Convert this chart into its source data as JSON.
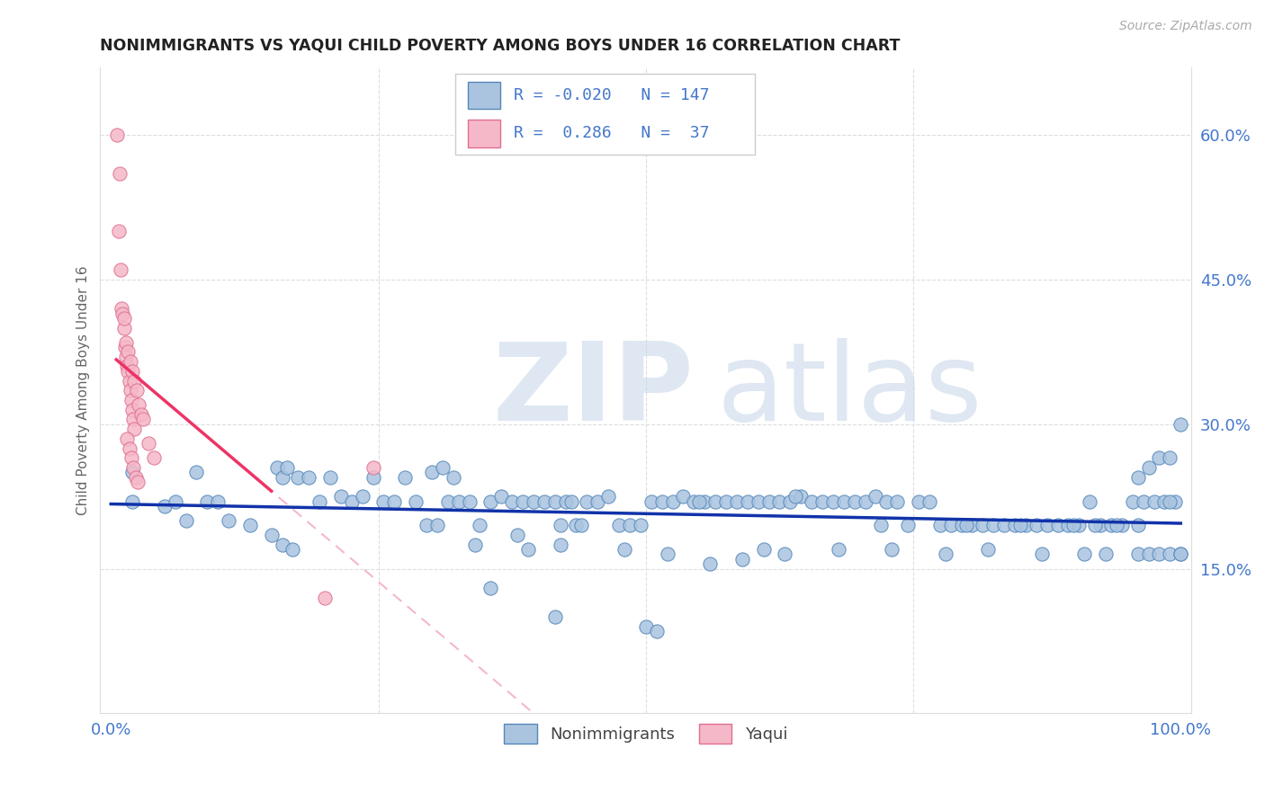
{
  "title": "NONIMMIGRANTS VS YAQUI CHILD POVERTY AMONG BOYS UNDER 16 CORRELATION CHART",
  "source": "Source: ZipAtlas.com",
  "ylabel": "Child Poverty Among Boys Under 16",
  "xlim": [
    -0.01,
    1.01
  ],
  "ylim": [
    0.0,
    0.67
  ],
  "ytick_positions": [
    0.15,
    0.3,
    0.45,
    0.6
  ],
  "ytick_labels": [
    "15.0%",
    "30.0%",
    "45.0%",
    "60.0%"
  ],
  "xtick_positions": [
    0.0,
    0.25,
    0.5,
    0.75,
    1.0
  ],
  "xtick_labels": [
    "0.0%",
    "",
    "",
    "",
    "100.0%"
  ],
  "blue_face": "#aac4e0",
  "blue_edge": "#5588bb",
  "pink_face": "#f5b8c8",
  "pink_edge": "#e07090",
  "trend_blue_color": "#1133aa",
  "trend_pink_solid": "#ee3366",
  "trend_pink_dash": "#f5b8c8",
  "text_color": "#4477cc",
  "legend_blue_R": "-0.020",
  "legend_blue_N": "147",
  "legend_pink_R": "0.286",
  "legend_pink_N": "37",
  "watermark_color": "#c8d8ea",
  "grid_color": "#dddddd",
  "blue_x": [
    0.02,
    0.05,
    0.07,
    0.09,
    0.11,
    0.13,
    0.02,
    0.06,
    0.08,
    0.1,
    0.155,
    0.16,
    0.165,
    0.175,
    0.185,
    0.195,
    0.205,
    0.215,
    0.225,
    0.235,
    0.245,
    0.255,
    0.265,
    0.275,
    0.285,
    0.295,
    0.305,
    0.315,
    0.325,
    0.335,
    0.345,
    0.355,
    0.365,
    0.375,
    0.385,
    0.395,
    0.405,
    0.415,
    0.42,
    0.425,
    0.435,
    0.445,
    0.455,
    0.465,
    0.475,
    0.485,
    0.495,
    0.505,
    0.515,
    0.525,
    0.535,
    0.545,
    0.555,
    0.565,
    0.575,
    0.585,
    0.595,
    0.605,
    0.615,
    0.625,
    0.635,
    0.645,
    0.655,
    0.665,
    0.675,
    0.685,
    0.695,
    0.705,
    0.715,
    0.725,
    0.735,
    0.745,
    0.755,
    0.765,
    0.775,
    0.785,
    0.795,
    0.805,
    0.815,
    0.825,
    0.835,
    0.845,
    0.855,
    0.865,
    0.875,
    0.885,
    0.895,
    0.905,
    0.915,
    0.925,
    0.935,
    0.945,
    0.955,
    0.965,
    0.975,
    0.985,
    0.995,
    0.96,
    0.97,
    0.98,
    0.99,
    1.0,
    0.34,
    0.355,
    0.415,
    0.5,
    0.51,
    0.42,
    0.48,
    0.52,
    0.56,
    0.59,
    0.61,
    0.63,
    0.68,
    0.73,
    0.78,
    0.82,
    0.87,
    0.91,
    0.93,
    0.96,
    0.97,
    0.98,
    0.99,
    1.0,
    1.0,
    0.15,
    0.16,
    0.17,
    0.3,
    0.31,
    0.32,
    0.38,
    0.39,
    0.43,
    0.44,
    0.55,
    0.64,
    0.72,
    0.8,
    0.85,
    0.9,
    0.92,
    0.94,
    0.96,
    0.99
  ],
  "blue_y": [
    0.22,
    0.215,
    0.2,
    0.22,
    0.2,
    0.195,
    0.25,
    0.22,
    0.25,
    0.22,
    0.255,
    0.245,
    0.255,
    0.245,
    0.245,
    0.22,
    0.245,
    0.225,
    0.22,
    0.225,
    0.245,
    0.22,
    0.22,
    0.245,
    0.22,
    0.195,
    0.195,
    0.22,
    0.22,
    0.22,
    0.195,
    0.22,
    0.225,
    0.22,
    0.22,
    0.22,
    0.22,
    0.22,
    0.195,
    0.22,
    0.195,
    0.22,
    0.22,
    0.225,
    0.195,
    0.195,
    0.195,
    0.22,
    0.22,
    0.22,
    0.225,
    0.22,
    0.22,
    0.22,
    0.22,
    0.22,
    0.22,
    0.22,
    0.22,
    0.22,
    0.22,
    0.225,
    0.22,
    0.22,
    0.22,
    0.22,
    0.22,
    0.22,
    0.225,
    0.22,
    0.22,
    0.195,
    0.22,
    0.22,
    0.195,
    0.195,
    0.195,
    0.195,
    0.195,
    0.195,
    0.195,
    0.195,
    0.195,
    0.195,
    0.195,
    0.195,
    0.195,
    0.195,
    0.22,
    0.195,
    0.195,
    0.195,
    0.22,
    0.22,
    0.22,
    0.22,
    0.22,
    0.245,
    0.255,
    0.265,
    0.265,
    0.3,
    0.175,
    0.13,
    0.1,
    0.09,
    0.085,
    0.175,
    0.17,
    0.165,
    0.155,
    0.16,
    0.17,
    0.165,
    0.17,
    0.17,
    0.165,
    0.17,
    0.165,
    0.165,
    0.165,
    0.165,
    0.165,
    0.165,
    0.165,
    0.165,
    0.165,
    0.185,
    0.175,
    0.17,
    0.25,
    0.255,
    0.245,
    0.185,
    0.17,
    0.22,
    0.195,
    0.22,
    0.225,
    0.195,
    0.195,
    0.195,
    0.195,
    0.195,
    0.195,
    0.195,
    0.22
  ],
  "pink_x": [
    0.006,
    0.008,
    0.01,
    0.011,
    0.012,
    0.013,
    0.014,
    0.015,
    0.016,
    0.017,
    0.018,
    0.019,
    0.02,
    0.021,
    0.022,
    0.007,
    0.009,
    0.012,
    0.014,
    0.016,
    0.018,
    0.02,
    0.022,
    0.024,
    0.026,
    0.028,
    0.03,
    0.035,
    0.04,
    0.015,
    0.017,
    0.019,
    0.021,
    0.023,
    0.025,
    0.245,
    0.2
  ],
  "pink_y": [
    0.6,
    0.56,
    0.42,
    0.415,
    0.4,
    0.38,
    0.37,
    0.36,
    0.355,
    0.345,
    0.335,
    0.325,
    0.315,
    0.305,
    0.295,
    0.5,
    0.46,
    0.41,
    0.385,
    0.375,
    0.365,
    0.355,
    0.345,
    0.335,
    0.32,
    0.31,
    0.305,
    0.28,
    0.265,
    0.285,
    0.275,
    0.265,
    0.255,
    0.245,
    0.24,
    0.255,
    0.12
  ]
}
